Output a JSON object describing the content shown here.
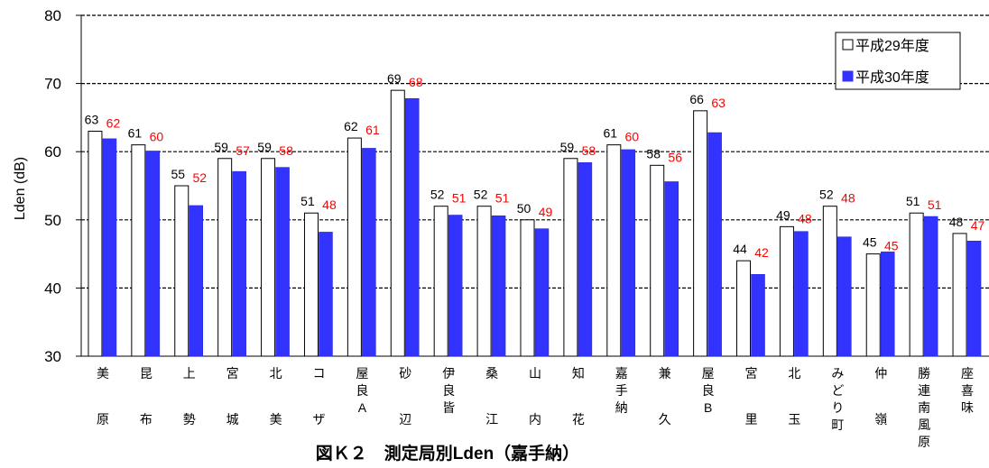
{
  "chart_data": {
    "type": "bar",
    "title": "図Ｋ２　測定局別Lden（嘉手納）",
    "ylabel": "Lden (dB)",
    "xlabel": "",
    "ylim": [
      30,
      80
    ],
    "yticks": [
      30,
      40,
      50,
      60,
      70,
      80
    ],
    "grid": true,
    "legend": "top-right",
    "categories": [
      [
        "美",
        "原"
      ],
      [
        "昆",
        "布"
      ],
      [
        "上",
        "勢"
      ],
      [
        "宮",
        "城"
      ],
      [
        "北",
        "美"
      ],
      [
        "コ",
        "ザ"
      ],
      [
        "屋",
        "良",
        "A"
      ],
      [
        "砂",
        "辺"
      ],
      [
        "伊",
        "良",
        "皆"
      ],
      [
        "桑",
        "江"
      ],
      [
        "山",
        "内"
      ],
      [
        "知",
        "花"
      ],
      [
        "嘉",
        "手",
        "納"
      ],
      [
        "兼",
        "久"
      ],
      [
        "屋",
        "良",
        "B"
      ],
      [
        "宮",
        "里"
      ],
      [
        "北",
        "玉"
      ],
      [
        "み",
        "ど",
        "り",
        "町"
      ],
      [
        "仲",
        "嶺"
      ],
      [
        "勝",
        "連",
        "南",
        "風",
        "原"
      ],
      [
        "座",
        "喜",
        "味"
      ]
    ],
    "series": [
      {
        "name": "平成29年度",
        "color": "#ffffff",
        "label_color": "#000000",
        "values": [
          63.0,
          61.0,
          55.0,
          59.0,
          59.0,
          51.0,
          62.0,
          69.0,
          52.0,
          52.0,
          50.0,
          59.0,
          61.0,
          58.0,
          66.0,
          44.0,
          49.0,
          52.0,
          45.0,
          51.0,
          48.0
        ],
        "labels": [
          "63",
          "61",
          "55",
          "59",
          "59",
          "51",
          "62",
          "69",
          "52",
          "52",
          "50",
          "59",
          "61",
          "58",
          "66",
          "44",
          "49",
          "52",
          "45",
          "51",
          "48"
        ]
      },
      {
        "name": "平成30年度",
        "color": "#3333ff",
        "label_color": "#ff0000",
        "values": [
          61.9,
          60.1,
          52.1,
          57.1,
          57.7,
          48.2,
          60.5,
          67.8,
          50.7,
          50.6,
          48.7,
          58.4,
          60.3,
          55.6,
          62.8,
          42.0,
          48.3,
          47.5,
          45.3,
          50.5,
          46.9
        ],
        "labels": [
          "62",
          "60",
          "52",
          "57",
          "58",
          "48",
          "61",
          "68",
          "51",
          "51",
          "49",
          "58",
          "60",
          "56",
          "63",
          "42",
          "48",
          "48",
          "45",
          "51",
          "47"
        ]
      }
    ]
  }
}
